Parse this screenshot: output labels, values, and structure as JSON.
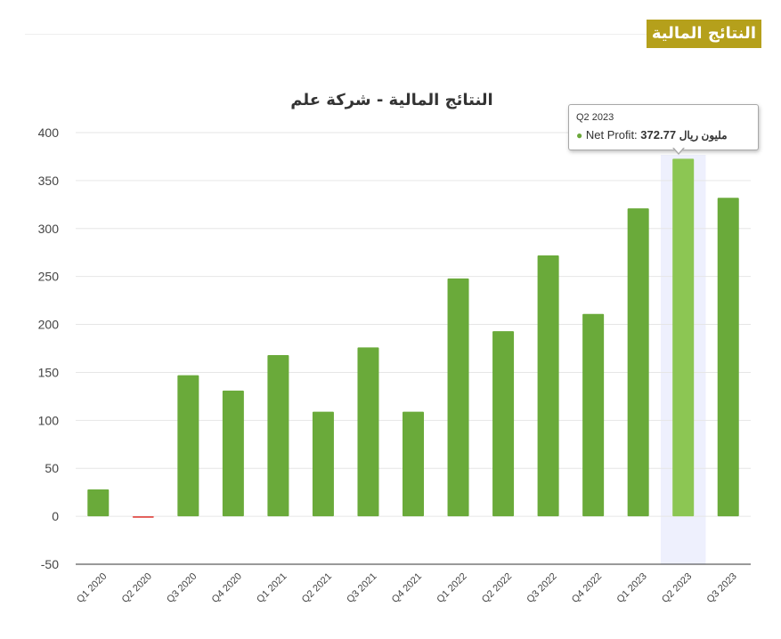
{
  "header": {
    "badge": "النتائج المالية"
  },
  "chart_data": {
    "type": "bar",
    "title": "النتائج المالية - شركة علم",
    "categories": [
      "Q1 2020",
      "Q2 2020",
      "Q3 2020",
      "Q4 2020",
      "Q1 2021",
      "Q2 2021",
      "Q3 2021",
      "Q4 2021",
      "Q1 2022",
      "Q2 2022",
      "Q3 2022",
      "Q4 2022",
      "Q1 2023",
      "Q2 2023",
      "Q3 2023"
    ],
    "series": [
      {
        "name": "Net Profit",
        "values": [
          28,
          -1.5,
          147,
          131,
          168,
          109,
          176,
          109,
          248,
          193,
          272,
          211,
          321,
          372.77,
          332
        ]
      }
    ],
    "ylim": [
      -50,
      400
    ],
    "yticks": [
      400,
      350,
      300,
      250,
      200,
      150,
      100,
      50,
      0,
      -50
    ],
    "grid": true,
    "colors": {
      "positive": "#6aaa3a",
      "negative": "#e0403a",
      "highlight": "#8cc653",
      "highlight_band": "#eef0fd"
    },
    "highlighted_index": 13
  },
  "tooltip": {
    "category": "Q2 2023",
    "series_label": "Net Profit:",
    "value": "372.77",
    "unit": "مليون ريال"
  }
}
